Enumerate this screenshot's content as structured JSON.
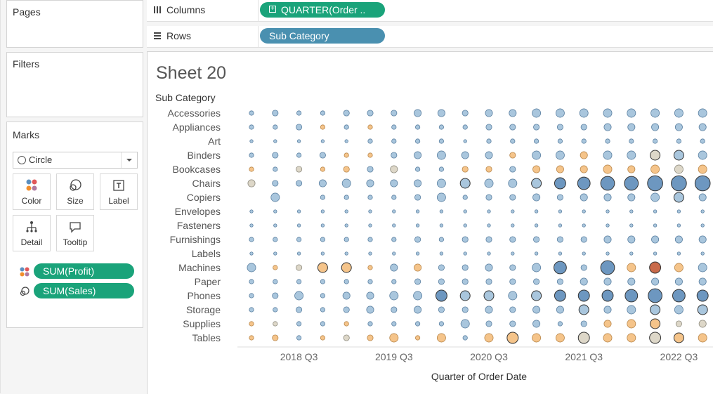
{
  "pages": {
    "title": "Pages"
  },
  "filters": {
    "title": "Filters"
  },
  "marks": {
    "title": "Marks",
    "mark_type": "Circle",
    "buttons": {
      "color": "Color",
      "size": "Size",
      "label": "Label",
      "detail": "Detail",
      "tooltip": "Tooltip"
    },
    "pills": {
      "color": "SUM(Profit)",
      "size": "SUM(Sales)"
    }
  },
  "shelves": {
    "columns_label": "Columns",
    "columns_pill": "QUARTER(Order ..",
    "rows_label": "Rows",
    "rows_pill": "Sub Category"
  },
  "sheet": {
    "title": "Sheet 20",
    "row_header": "Sub Category",
    "x_axis_title": "Quarter of Order Date"
  },
  "colors": {
    "accent_green": "#1aa37a",
    "pill_blue": "#4a90b0"
  },
  "chart_data": {
    "type": "scatter",
    "encoding": "circle size = SUM(Sales), color = SUM(Profit) (diverging orange-blue)",
    "xlabel": "Quarter of Order Date",
    "x_tick_labels": [
      "2018 Q3",
      "2019 Q3",
      "2020 Q3",
      "2021 Q3",
      "2022 Q3"
    ],
    "x": [
      "2018 Q1",
      "2018 Q2",
      "2018 Q3",
      "2018 Q4",
      "2019 Q1",
      "2019 Q2",
      "2019 Q3",
      "2019 Q4",
      "2020 Q1",
      "2020 Q2",
      "2020 Q3",
      "2020 Q4",
      "2021 Q1",
      "2021 Q2",
      "2021 Q3",
      "2021 Q4",
      "2022 Q1",
      "2022 Q2",
      "2022 Q3",
      "2022 Q4"
    ],
    "categories": [
      "Accessories",
      "Appliances",
      "Art",
      "Binders",
      "Bookcases",
      "Chairs",
      "Copiers",
      "Envelopes",
      "Fasteners",
      "Furnishings",
      "Labels",
      "Machines",
      "Paper",
      "Phones",
      "Storage",
      "Supplies",
      "Tables"
    ],
    "size_scale": [
      [
        2,
        3,
        2,
        2,
        3,
        3,
        3,
        4,
        4,
        3,
        4,
        4,
        5,
        5,
        5,
        5,
        5,
        5,
        5,
        5
      ],
      [
        2,
        2,
        3,
        2,
        2,
        2,
        2,
        2,
        2,
        2,
        3,
        3,
        3,
        3,
        3,
        4,
        4,
        4,
        4,
        4
      ],
      [
        1,
        1,
        1,
        1,
        1,
        2,
        2,
        2,
        2,
        1,
        2,
        2,
        2,
        2,
        2,
        2,
        2,
        2,
        2,
        2
      ],
      [
        2,
        3,
        2,
        3,
        2,
        2,
        3,
        4,
        5,
        4,
        4,
        3,
        5,
        5,
        4,
        5,
        5,
        6,
        6,
        5
      ],
      [
        2,
        2,
        3,
        2,
        3,
        3,
        4,
        2,
        2,
        3,
        3,
        3,
        4,
        4,
        4,
        5,
        4,
        5,
        5,
        5
      ],
      [
        4,
        3,
        3,
        4,
        5,
        4,
        4,
        4,
        5,
        6,
        5,
        5,
        6,
        7,
        8,
        9,
        9,
        10,
        10,
        10
      ],
      [
        0,
        5,
        0,
        2,
        2,
        2,
        2,
        3,
        5,
        2,
        3,
        3,
        4,
        3,
        4,
        4,
        4,
        5,
        6,
        4
      ],
      [
        1,
        1,
        1,
        1,
        1,
        1,
        1,
        1,
        1,
        1,
        1,
        1,
        1,
        1,
        1,
        1,
        1,
        1,
        1,
        1
      ],
      [
        1,
        1,
        1,
        1,
        1,
        1,
        1,
        1,
        1,
        1,
        1,
        1,
        1,
        1,
        1,
        1,
        1,
        1,
        1,
        1
      ],
      [
        2,
        2,
        2,
        2,
        2,
        2,
        2,
        3,
        2,
        3,
        3,
        3,
        3,
        3,
        3,
        4,
        4,
        4,
        4,
        4
      ],
      [
        1,
        1,
        1,
        1,
        1,
        1,
        1,
        1,
        1,
        1,
        1,
        1,
        1,
        1,
        1,
        1,
        1,
        1,
        1,
        1
      ],
      [
        5,
        2,
        3,
        6,
        6,
        2,
        4,
        4,
        3,
        3,
        4,
        3,
        5,
        8,
        3,
        9,
        5,
        7,
        5,
        5
      ],
      [
        2,
        2,
        2,
        2,
        2,
        2,
        2,
        3,
        3,
        3,
        3,
        3,
        3,
        3,
        4,
        4,
        4,
        4,
        4,
        4
      ],
      [
        2,
        3,
        5,
        2,
        4,
        4,
        5,
        5,
        7,
        6,
        6,
        5,
        6,
        7,
        7,
        7,
        8,
        9,
        8,
        7
      ],
      [
        2,
        2,
        3,
        2,
        3,
        4,
        3,
        4,
        3,
        3,
        4,
        3,
        4,
        4,
        6,
        4,
        5,
        6,
        5,
        6
      ],
      [
        2,
        2,
        2,
        2,
        2,
        2,
        2,
        2,
        2,
        5,
        3,
        3,
        4,
        2,
        3,
        4,
        5,
        6,
        3,
        4
      ],
      [
        2,
        3,
        2,
        2,
        3,
        3,
        5,
        2,
        5,
        2,
        5,
        7,
        5,
        5,
        7,
        5,
        5,
        7,
        6,
        5
      ]
    ],
    "profit_sign": [
      [
        "b",
        "b",
        "b",
        "b",
        "b",
        "b",
        "b",
        "b",
        "b",
        "b",
        "b",
        "b",
        "b",
        "b",
        "b",
        "b",
        "b",
        "b",
        "b",
        "b"
      ],
      [
        "b",
        "b",
        "b",
        "o",
        "b",
        "o",
        "b",
        "b",
        "b",
        "b",
        "b",
        "b",
        "b",
        "b",
        "b",
        "b",
        "b",
        "b",
        "b",
        "b"
      ],
      [
        "b",
        "b",
        "b",
        "b",
        "b",
        "b",
        "b",
        "b",
        "b",
        "b",
        "b",
        "b",
        "b",
        "b",
        "b",
        "b",
        "b",
        "b",
        "b",
        "b"
      ],
      [
        "b",
        "b",
        "b",
        "b",
        "o",
        "o",
        "b",
        "b",
        "b",
        "b",
        "b",
        "o",
        "b",
        "b",
        "o",
        "b",
        "b",
        "n",
        "b",
        "b"
      ],
      [
        "o",
        "b",
        "n",
        "o",
        "o",
        "b",
        "n",
        "b",
        "b",
        "o",
        "o",
        "b",
        "o",
        "o",
        "o",
        "o",
        "o",
        "o",
        "n",
        "o"
      ],
      [
        "n",
        "b",
        "b",
        "b",
        "b",
        "b",
        "b",
        "b",
        "b",
        "b",
        "b",
        "b",
        "b",
        "b",
        "b",
        "b",
        "b",
        "b",
        "b",
        "b"
      ],
      [
        "b",
        "b",
        "b",
        "b",
        "b",
        "b",
        "b",
        "b",
        "b",
        "b",
        "b",
        "b",
        "b",
        "b",
        "b",
        "b",
        "b",
        "b",
        "b",
        "b"
      ],
      [
        "b",
        "b",
        "b",
        "b",
        "b",
        "b",
        "b",
        "b",
        "b",
        "b",
        "b",
        "b",
        "b",
        "b",
        "b",
        "b",
        "b",
        "b",
        "b",
        "b"
      ],
      [
        "b",
        "b",
        "b",
        "b",
        "b",
        "b",
        "b",
        "b",
        "b",
        "b",
        "b",
        "b",
        "b",
        "b",
        "b",
        "b",
        "b",
        "b",
        "b",
        "b"
      ],
      [
        "b",
        "b",
        "b",
        "b",
        "b",
        "b",
        "b",
        "b",
        "b",
        "b",
        "b",
        "b",
        "b",
        "b",
        "b",
        "b",
        "b",
        "b",
        "b",
        "b"
      ],
      [
        "b",
        "b",
        "b",
        "b",
        "b",
        "b",
        "b",
        "b",
        "b",
        "b",
        "b",
        "b",
        "b",
        "b",
        "b",
        "b",
        "b",
        "b",
        "b",
        "b"
      ],
      [
        "b",
        "o",
        "n",
        "o",
        "o",
        "o",
        "b",
        "o",
        "b",
        "b",
        "b",
        "b",
        "b",
        "b",
        "b",
        "b",
        "o",
        "r",
        "o",
        "b"
      ],
      [
        "b",
        "b",
        "b",
        "b",
        "b",
        "b",
        "b",
        "b",
        "b",
        "b",
        "b",
        "b",
        "b",
        "b",
        "b",
        "b",
        "b",
        "b",
        "b",
        "b"
      ],
      [
        "b",
        "b",
        "b",
        "b",
        "b",
        "b",
        "b",
        "b",
        "b",
        "b",
        "b",
        "b",
        "b",
        "b",
        "b",
        "b",
        "b",
        "b",
        "b",
        "b"
      ],
      [
        "b",
        "b",
        "b",
        "b",
        "b",
        "b",
        "b",
        "b",
        "b",
        "b",
        "b",
        "b",
        "b",
        "b",
        "b",
        "b",
        "b",
        "b",
        "b",
        "b"
      ],
      [
        "o",
        "n",
        "b",
        "b",
        "o",
        "b",
        "b",
        "b",
        "b",
        "b",
        "b",
        "b",
        "b",
        "b",
        "b",
        "o",
        "o",
        "o",
        "n",
        "n"
      ],
      [
        "o",
        "o",
        "b",
        "o",
        "n",
        "o",
        "o",
        "o",
        "o",
        "b",
        "o",
        "o",
        "o",
        "o",
        "n",
        "o",
        "o",
        "n",
        "o",
        "o"
      ]
    ],
    "legend": "none"
  }
}
